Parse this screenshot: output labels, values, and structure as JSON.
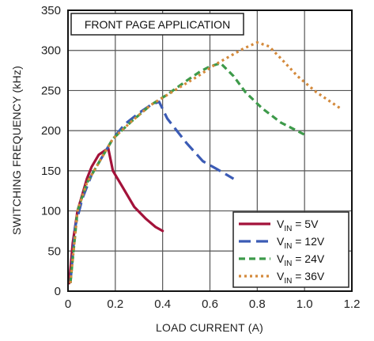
{
  "chart_data": {
    "type": "line",
    "annotation": "FRONT PAGE APPLICATION",
    "xlabel": "LOAD CURRENT (A)",
    "ylabel": "SWITCHING FREQUENCY (kHz)",
    "xlim": [
      0,
      1.2
    ],
    "ylim": [
      0,
      350
    ],
    "xticks": [
      0,
      0.2,
      0.4,
      0.6,
      0.8,
      1.0,
      1.2
    ],
    "xtick_labels": [
      "0",
      "0.2",
      "0.4",
      "0.6",
      "0.8",
      "1.0",
      "1.2"
    ],
    "yticks": [
      0,
      50,
      100,
      150,
      200,
      250,
      300,
      350
    ],
    "ytick_labels": [
      "0",
      "50",
      "100",
      "150",
      "200",
      "250",
      "300",
      "350"
    ],
    "grid": true,
    "legend_position": "bottom-right",
    "series": [
      {
        "label_main": "V",
        "label_sub": "IN",
        "label_rest": " = 5V",
        "color": "#a3123a",
        "dash": "solid",
        "points": [
          [
            0.005,
            10
          ],
          [
            0.02,
            60
          ],
          [
            0.04,
            100
          ],
          [
            0.06,
            120
          ],
          [
            0.08,
            140
          ],
          [
            0.1,
            155
          ],
          [
            0.13,
            170
          ],
          [
            0.155,
            175
          ],
          [
            0.17,
            178
          ],
          [
            0.19,
            150
          ],
          [
            0.23,
            130
          ],
          [
            0.28,
            105
          ],
          [
            0.33,
            90
          ],
          [
            0.37,
            80
          ],
          [
            0.4,
            75
          ]
        ]
      },
      {
        "label_main": "V",
        "label_sub": "IN",
        "label_rest": " = 12V",
        "color": "#3b5bb5",
        "dash": "long",
        "points": [
          [
            0.01,
            10
          ],
          [
            0.03,
            80
          ],
          [
            0.06,
            115
          ],
          [
            0.1,
            145
          ],
          [
            0.14,
            165
          ],
          [
            0.19,
            190
          ],
          [
            0.24,
            208
          ],
          [
            0.3,
            222
          ],
          [
            0.35,
            232
          ],
          [
            0.385,
            236
          ],
          [
            0.42,
            215
          ],
          [
            0.5,
            185
          ],
          [
            0.57,
            162
          ],
          [
            0.63,
            152
          ],
          [
            0.7,
            140
          ]
        ]
      },
      {
        "label_main": "V",
        "label_sub": "IN",
        "label_rest": " = 24V",
        "color": "#3d9a4a",
        "dash": "medium",
        "points": [
          [
            0.01,
            10
          ],
          [
            0.04,
            100
          ],
          [
            0.08,
            135
          ],
          [
            0.13,
            160
          ],
          [
            0.19,
            190
          ],
          [
            0.27,
            212
          ],
          [
            0.35,
            232
          ],
          [
            0.42,
            245
          ],
          [
            0.5,
            262
          ],
          [
            0.56,
            274
          ],
          [
            0.6,
            280
          ],
          [
            0.645,
            284
          ],
          [
            0.7,
            268
          ],
          [
            0.75,
            248
          ],
          [
            0.82,
            228
          ],
          [
            0.9,
            210
          ],
          [
            1.0,
            195
          ]
        ]
      },
      {
        "label_main": "V",
        "label_sub": "IN",
        "label_rest": " = 36V",
        "color": "#d48a3c",
        "dash": "dot",
        "points": [
          [
            0.01,
            10
          ],
          [
            0.04,
            100
          ],
          [
            0.08,
            135
          ],
          [
            0.13,
            160
          ],
          [
            0.19,
            190
          ],
          [
            0.27,
            212
          ],
          [
            0.35,
            232
          ],
          [
            0.45,
            250
          ],
          [
            0.55,
            268
          ],
          [
            0.62,
            282
          ],
          [
            0.68,
            292
          ],
          [
            0.74,
            302
          ],
          [
            0.8,
            310
          ],
          [
            0.85,
            305
          ],
          [
            0.9,
            290
          ],
          [
            0.97,
            268
          ],
          [
            1.05,
            248
          ],
          [
            1.15,
            228
          ]
        ]
      }
    ]
  }
}
